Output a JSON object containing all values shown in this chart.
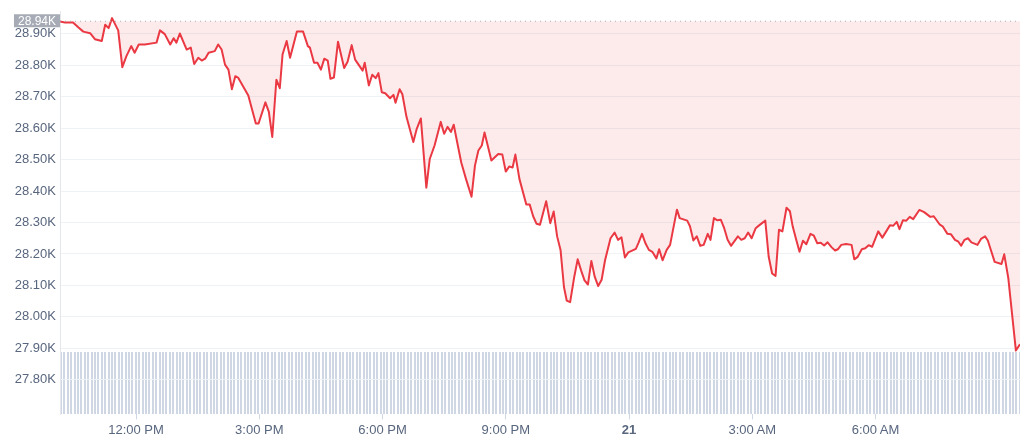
{
  "chart_data": {
    "type": "line",
    "xlim": [
      "--04-20T10:09",
      "--04-21T09:31"
    ],
    "ylim": [
      27.69,
      28.97
    ],
    "xticks": [
      {
        "value": "--04-20T12:00",
        "label": "12:00 PM"
      },
      {
        "value": "--04-20T15:00",
        "label": "3:00 PM"
      },
      {
        "value": "--04-20T18:00",
        "label": "6:00 PM"
      },
      {
        "value": "--04-20T21:00",
        "label": "9:00 PM"
      },
      {
        "value": "--04-21",
        "label": "21"
      },
      {
        "value": "--04-21T03:00",
        "label": "3:00 AM"
      },
      {
        "value": "--04-21T06:00",
        "label": "6:00 AM"
      }
    ],
    "yticks": [
      {
        "value": 27.8,
        "label": "27.80K"
      },
      {
        "value": 27.9,
        "label": "27.90K"
      },
      {
        "value": 28.0,
        "label": "28.00K"
      },
      {
        "value": 28.1,
        "label": "28.10K"
      },
      {
        "value": 28.2,
        "label": "28.20K"
      },
      {
        "value": 28.3,
        "label": "28.30K"
      },
      {
        "value": 28.4,
        "label": "28.40K"
      },
      {
        "value": 28.5,
        "label": "28.50K"
      },
      {
        "value": 28.6,
        "label": "28.60K"
      },
      {
        "value": 28.7,
        "label": "28.70K"
      },
      {
        "value": 28.8,
        "label": "28.80K"
      },
      {
        "value": 28.9,
        "label": "28.90K"
      }
    ],
    "grid": "y",
    "legend": false,
    "marker": "none",
    "line_style": "solid",
    "tick_labels": "xy",
    "ref_lines": [
      {
        "axis": "y",
        "value": 28.94,
        "label": "28.94K",
        "color": "#a6abb5",
        "line_style": "dotted"
      }
    ],
    "series": [
      {
        "color": "#ea3943",
        "x": [
          "--04-20T10:09",
          "--04-20T10:16",
          "--04-20T10:28",
          "--04-20T10:36",
          "--04-20T10:43",
          "--04-20T10:53",
          "--04-20T11:00",
          "--04-20T11:10",
          "--04-20T11:15",
          "--04-20T11:20",
          "--04-20T11:25",
          "--04-20T11:34",
          "--04-20T11:40",
          "--04-20T11:46",
          "--04-20T11:53",
          "--04-20T11:58",
          "--04-20T12:04",
          "--04-20T12:13",
          "--04-20T12:30",
          "--04-20T12:35",
          "--04-20T12:42",
          "--04-20T12:50",
          "--04-20T12:55",
          "--04-20T12:59",
          "--04-20T13:04",
          "--04-20T13:14",
          "--04-20T13:20",
          "--04-20T13:25",
          "--04-20T13:31",
          "--04-20T13:36",
          "--04-20T13:41",
          "--04-20T13:46",
          "--04-20T13:55",
          "--04-20T14:00",
          "--04-20T14:05",
          "--04-20T14:10",
          "--04-20T14:15",
          "--04-20T14:20",
          "--04-20T14:25",
          "--04-20T14:29",
          "--04-20T14:44",
          "--04-20T14:55",
          "--04-20T14:59",
          "--04-20T15:09",
          "--04-20T15:14",
          "--04-20T15:19",
          "--04-20T15:25",
          "--04-20T15:30",
          "--04-20T15:34",
          "--04-20T15:40",
          "--04-20T15:45",
          "--04-20T15:55",
          "--04-20T16:04",
          "--04-20T16:11",
          "--04-20T16:14",
          "--04-20T16:20",
          "--04-20T16:25",
          "--04-20T16:30",
          "--04-20T16:35",
          "--04-20T16:40",
          "--04-20T16:44",
          "--04-20T16:49",
          "--04-20T16:55",
          "--04-20T17:04",
          "--04-20T17:09",
          "--04-20T17:15",
          "--04-20T17:20",
          "--04-20T17:31",
          "--04-20T17:34",
          "--04-20T17:40",
          "--04-20T17:45",
          "--04-20T17:50",
          "--04-20T17:54",
          "--04-20T17:59",
          "--04-20T18:04",
          "--04-20T18:11",
          "--04-20T18:16",
          "--04-20T18:19",
          "--04-20T18:25",
          "--04-20T18:29",
          "--04-20T18:35",
          "--04-20T18:45",
          "--04-20T18:50",
          "--04-20T18:56",
          "--04-20T19:04",
          "--04-20T19:09",
          "--04-20T19:16",
          "--04-20T19:25",
          "--04-20T19:30",
          "--04-20T19:35",
          "--04-20T19:40",
          "--04-20T19:44",
          "--04-20T19:50",
          "--04-20T19:55",
          "--04-20T20:02",
          "--04-20T20:10",
          "--04-20T20:15",
          "--04-20T20:20",
          "--04-20T20:25",
          "--04-20T20:29",
          "--04-20T20:39",
          "--04-20T20:49",
          "--04-20T20:55",
          "--04-20T21:00",
          "--04-20T21:05",
          "--04-20T21:10",
          "--04-20T21:14",
          "--04-20T21:20",
          "--04-20T21:30",
          "--04-20T21:35",
          "--04-20T21:40",
          "--04-20T21:45",
          "--04-20T21:50",
          "--04-20T21:59",
          "--04-20T22:05",
          "--04-20T22:10",
          "--04-20T22:15",
          "--04-20T22:20",
          "--04-20T22:25",
          "--04-20T22:29",
          "--04-20T22:34",
          "--04-20T22:40",
          "--04-20T22:45",
          "--04-20T22:50",
          "--04-20T22:55",
          "--04-20T23:00",
          "--04-20T23:05",
          "--04-20T23:10",
          "--04-20T23:15",
          "--04-20T23:20",
          "--04-20T23:25",
          "--04-20T23:33",
          "--04-20T23:39",
          "--04-20T23:44",
          "--04-20T23:49",
          "--04-20T23:54",
          "--04-20T23:59",
          "--04-21T00:10",
          "--04-21T00:14",
          "--04-21T00:19",
          "--04-21T00:24",
          "--04-21T00:29",
          "--04-21T00:34",
          "--04-21T00:40",
          "--04-21T00:44",
          "--04-21T00:49",
          "--04-21T00:55",
          "--04-21T01:00",
          "--04-21T01:10",
          "--04-21T01:14",
          "--04-21T01:25",
          "--04-21T01:29",
          "--04-21T01:34",
          "--04-21T01:39",
          "--04-21T01:44",
          "--04-21T01:49",
          "--04-21T01:55",
          "--04-21T01:59",
          "--04-21T02:04",
          "--04-21T02:09",
          "--04-21T02:14",
          "--04-21T02:19",
          "--04-21T02:24",
          "--04-21T02:29",
          "--04-21T02:39",
          "--04-21T02:44",
          "--04-21T02:49",
          "--04-21T02:54",
          "--04-21T02:59",
          "--04-21T03:05",
          "--04-21T03:10",
          "--04-21T03:19",
          "--04-21T03:24",
          "--04-21T03:29",
          "--04-21T03:34",
          "--04-21T03:39",
          "--04-21T03:44",
          "--04-21T03:50",
          "--04-21T03:55",
          "--04-21T03:59",
          "--04-21T04:04",
          "--04-21T04:09",
          "--04-21T04:14",
          "--04-21T04:19",
          "--04-21T04:25",
          "--04-21T04:30",
          "--04-21T04:35",
          "--04-21T04:40",
          "--04-21T04:45",
          "--04-21T04:50",
          "--04-21T04:56",
          "--04-21T05:01",
          "--04-21T05:05",
          "--04-21T05:10",
          "--04-21T05:17",
          "--04-21T05:25",
          "--04-21T05:29",
          "--04-21T05:34",
          "--04-21T05:40",
          "--04-21T05:45",
          "--04-21T05:50",
          "--04-21T05:55",
          "--04-21T06:04",
          "--04-21T06:10",
          "--04-21T06:21",
          "--04-21T06:26",
          "--04-21T06:31",
          "--04-21T06:35",
          "--04-21T06:40",
          "--04-21T06:45",
          "--04-21T06:50",
          "--04-21T06:55",
          "--04-21T07:04",
          "--04-21T07:11",
          "--04-21T07:20",
          "--04-21T07:25",
          "--04-21T07:34",
          "--04-21T07:38",
          "--04-21T07:45",
          "--04-21T07:50",
          "--04-21T07:56",
          "--04-21T08:01",
          "--04-21T08:05",
          "--04-21T08:10",
          "--04-21T08:15",
          "--04-21T08:20",
          "--04-21T08:29",
          "--04-21T08:34",
          "--04-21T08:40",
          "--04-21T08:44",
          "--04-21T08:54",
          "--04-21T09:04",
          "--04-21T09:08",
          "--04-21T09:14",
          "--04-21T09:25",
          "--04-21T09:31"
        ],
        "values": [
          28.939,
          28.936,
          28.936,
          28.92,
          28.907,
          28.902,
          28.883,
          28.877,
          28.929,
          28.918,
          28.95,
          28.911,
          28.794,
          28.829,
          28.861,
          28.84,
          28.866,
          28.866,
          28.872,
          28.911,
          28.899,
          28.866,
          28.886,
          28.872,
          28.901,
          28.85,
          28.856,
          28.804,
          28.824,
          28.815,
          28.821,
          28.84,
          28.845,
          28.866,
          28.85,
          28.802,
          28.786,
          28.724,
          28.765,
          28.761,
          28.704,
          28.615,
          28.615,
          28.682,
          28.652,
          28.572,
          28.754,
          28.727,
          28.834,
          28.877,
          28.824,
          28.907,
          28.907,
          28.861,
          28.856,
          28.808,
          28.808,
          28.786,
          28.821,
          28.815,
          28.757,
          28.761,
          28.875,
          28.791,
          28.811,
          28.864,
          28.818,
          28.783,
          28.808,
          28.736,
          28.77,
          28.759,
          28.775,
          28.714,
          28.711,
          28.695,
          28.706,
          28.681,
          28.724,
          28.708,
          28.636,
          28.556,
          28.598,
          28.631,
          28.411,
          28.502,
          28.545,
          28.62,
          28.582,
          28.604,
          28.588,
          28.611,
          28.545,
          28.491,
          28.438,
          28.382,
          28.481,
          28.529,
          28.545,
          28.586,
          28.497,
          28.518,
          28.516,
          28.462,
          28.478,
          28.475,
          28.516,
          28.438,
          28.357,
          28.357,
          28.32,
          28.296,
          28.293,
          28.368,
          28.298,
          28.335,
          28.256,
          28.213,
          28.095,
          28.052,
          28.047,
          28.127,
          28.183,
          28.148,
          28.116,
          28.103,
          28.178,
          28.127,
          28.098,
          28.118,
          28.18,
          28.25,
          28.268,
          28.245,
          28.253,
          28.189,
          28.205,
          28.216,
          28.236,
          28.264,
          28.234,
          28.213,
          28.207,
          28.186,
          28.215,
          28.18,
          28.213,
          28.229,
          28.341,
          28.314,
          28.306,
          28.288,
          28.243,
          28.256,
          28.226,
          28.229,
          28.264,
          28.245,
          28.314,
          28.307,
          28.309,
          28.282,
          28.245,
          28.226,
          28.256,
          28.245,
          28.25,
          28.268,
          28.25,
          28.282,
          28.291,
          28.306,
          28.191,
          28.138,
          28.13,
          28.277,
          28.272,
          28.347,
          28.336,
          28.288,
          28.247,
          28.207,
          28.242,
          28.231,
          28.264,
          28.258,
          28.234,
          28.236,
          28.227,
          28.237,
          28.221,
          28.211,
          28.215,
          28.229,
          28.232,
          28.229,
          28.183,
          28.191,
          28.215,
          28.218,
          28.228,
          28.223,
          28.272,
          28.252,
          28.291,
          28.29,
          28.302,
          28.279,
          28.307,
          28.306,
          28.318,
          28.311,
          28.34,
          28.333,
          28.318,
          28.32,
          28.293,
          28.288,
          28.264,
          28.263,
          28.245,
          28.239,
          28.226,
          28.245,
          28.25,
          28.237,
          28.229,
          28.248,
          28.256,
          28.243,
          28.175,
          28.168,
          28.199,
          28.122,
          27.893,
          27.913
        ]
      }
    ]
  }
}
